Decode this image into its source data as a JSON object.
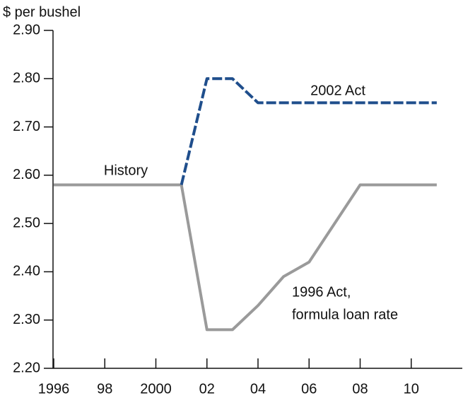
{
  "chart_data": {
    "type": "line",
    "y_label": "$ per bushel",
    "xlim": [
      1996,
      2012
    ],
    "xticks": [
      1996,
      {
        "value": 1998,
        "label": "98"
      },
      2000,
      {
        "value": 2002,
        "label": "02"
      },
      {
        "value": 2004,
        "label": "04"
      },
      {
        "value": 2006,
        "label": "06"
      },
      {
        "value": 2008,
        "label": "08"
      },
      {
        "value": 2010,
        "label": "10"
      }
    ],
    "ylim": [
      2.2,
      2.9
    ],
    "yticks": [
      {
        "value": 2.2,
        "label": "2.20"
      },
      {
        "value": 2.3,
        "label": "2.30"
      },
      {
        "value": 2.4,
        "label": "2.40"
      },
      {
        "value": 2.5,
        "label": "2.50"
      },
      {
        "value": 2.6,
        "label": "2.60"
      },
      {
        "value": 2.7,
        "label": "2.70"
      },
      {
        "value": 2.8,
        "label": "2.80"
      },
      {
        "value": 2.9,
        "label": "2.90"
      }
    ],
    "series": [
      {
        "color": "#9a9a9a",
        "dash": false,
        "x": [
          1996,
          1997,
          1998,
          1999,
          2000,
          2001
        ],
        "values": [
          2.58,
          2.58,
          2.58,
          2.58,
          2.58,
          2.58
        ]
      },
      {
        "color": "#9a9a9a",
        "dash": false,
        "x": [
          2001,
          2002,
          2003,
          2004,
          2005,
          2006,
          2007,
          2008,
          2009,
          2010,
          2011
        ],
        "values": [
          2.58,
          2.28,
          2.28,
          2.33,
          2.39,
          2.42,
          2.5,
          2.58,
          2.58,
          2.58,
          2.58
        ]
      },
      {
        "color": "#1f4e8c",
        "dash": true,
        "x": [
          2001,
          2002,
          2003,
          2004,
          2005,
          2006,
          2007,
          2008,
          2009,
          2010,
          2011
        ],
        "values": [
          2.58,
          2.8,
          2.8,
          2.75,
          2.75,
          2.75,
          2.75,
          2.75,
          2.75,
          2.75,
          2.75
        ]
      }
    ],
    "annotations": [
      "History",
      "2002 Act",
      "1996 Act,",
      "formula loan rate"
    ]
  }
}
